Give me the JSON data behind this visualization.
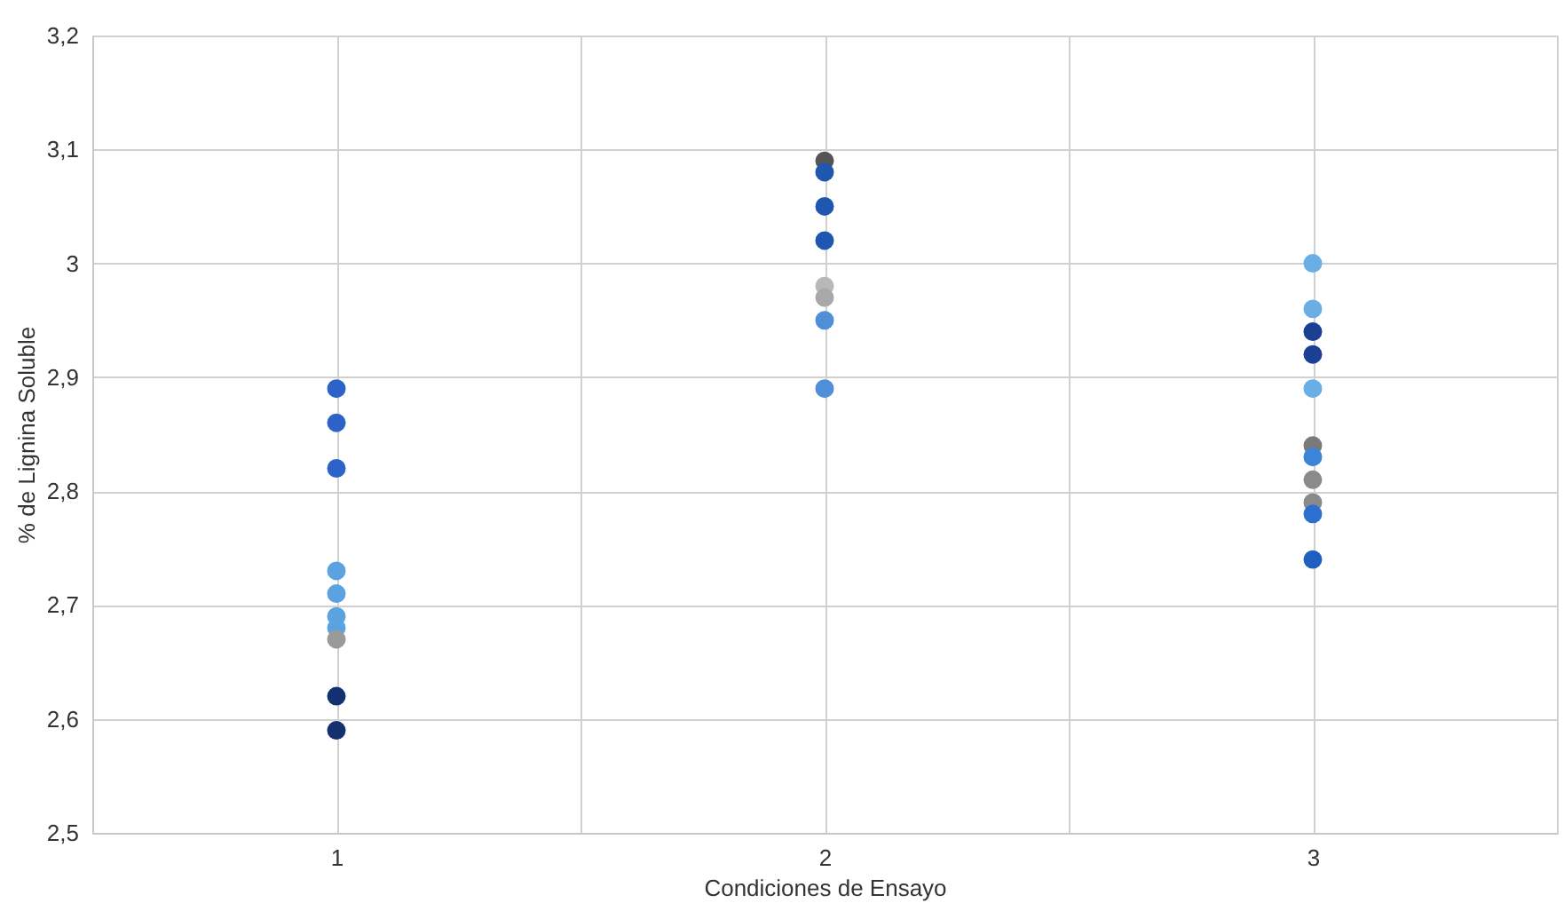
{
  "chart_data": {
    "type": "scatter",
    "xlabel": "Condiciones de Ensayo",
    "ylabel": "% de Lignina Soluble",
    "x": [
      1,
      1,
      1,
      1,
      1,
      1,
      1,
      1,
      1,
      1,
      2,
      2,
      2,
      2,
      2,
      2,
      2,
      2,
      3,
      3,
      3,
      3,
      3,
      3,
      3,
      3,
      3,
      3,
      3
    ],
    "values": [
      2.89,
      2.86,
      2.82,
      2.73,
      2.71,
      2.69,
      2.68,
      2.67,
      2.62,
      2.59,
      3.09,
      3.08,
      3.05,
      3.02,
      2.98,
      2.97,
      2.95,
      2.89,
      3.0,
      2.96,
      2.94,
      2.92,
      2.89,
      2.84,
      2.83,
      2.81,
      2.79,
      2.78,
      2.74
    ],
    "colors": [
      "#2d63c8",
      "#2d63c8",
      "#2d63c8",
      "#5aa2e0",
      "#5aa2e0",
      "#5aa2e0",
      "#5aa2e0",
      "#9a9a9a",
      "#14306e",
      "#14306e",
      "#555555",
      "#1f56b0",
      "#1f56b0",
      "#1f56b0",
      "#b8b8b8",
      "#a8a8a8",
      "#4f8fd8",
      "#4f8fd8",
      "#6aaee6",
      "#6aaee6",
      "#1a3f93",
      "#1a3f93",
      "#6aaee6",
      "#7a7a7a",
      "#3a85d8",
      "#8a8a8a",
      "#8a8a8a",
      "#2d6fd0",
      "#1f5fc0"
    ],
    "xlim": [
      0.5,
      3.5
    ],
    "xticks": [
      1,
      {
        "value": 1.5,
        "label": null
      },
      2,
      {
        "value": 2.5,
        "label": null
      },
      3
    ],
    "ylim": [
      2.5,
      3.2
    ],
    "yticks": [
      {
        "value": 2.5,
        "label": "2,5"
      },
      {
        "value": 2.6,
        "label": "2,6"
      },
      {
        "value": 2.7,
        "label": "2,7"
      },
      {
        "value": 2.8,
        "label": "2,8"
      },
      {
        "value": 2.9,
        "label": "2,9"
      },
      3,
      {
        "value": 3.1,
        "label": "3,1"
      },
      {
        "value": 3.2,
        "label": "3,2"
      }
    ],
    "grid": true,
    "marker": "circle"
  }
}
